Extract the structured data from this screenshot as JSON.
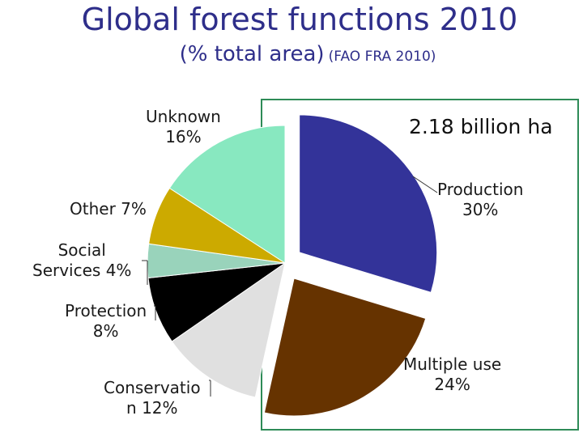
{
  "title": "Global forest functions 2010",
  "subtitle_main": "(% total area)",
  "subtitle_source": "(FAO FRA 2010)",
  "total_label": "2.18 billion ha",
  "chart_data": {
    "type": "pie",
    "title": "Global forest functions 2010",
    "subtitle": "(% total area) (FAO FRA 2010)",
    "slices": [
      {
        "label": "Production",
        "value": 30,
        "color": "#333399",
        "exploded": true,
        "text": [
          "Production",
          "30%"
        ]
      },
      {
        "label": "Multiple use",
        "value": 24,
        "color": "#663300",
        "exploded": true,
        "text": [
          "Multiple use",
          "24%"
        ]
      },
      {
        "label": "Conservation",
        "value": 12,
        "color": "#e0e0e0",
        "exploded": false,
        "text": [
          "Conservatio",
          "n 12%"
        ]
      },
      {
        "label": "Protection",
        "value": 8,
        "color": "#000000",
        "exploded": false,
        "text": [
          "Protection",
          "8%"
        ]
      },
      {
        "label": "Social Services",
        "value": 4,
        "color": "#99d3bb",
        "exploded": false,
        "text": [
          "Social",
          "Services 4%"
        ]
      },
      {
        "label": "Other",
        "value": 7,
        "color": "#ccaa00",
        "exploded": false,
        "text": [
          "Other 7%"
        ]
      },
      {
        "label": "Unknown",
        "value": 16,
        "color": "#88e8c0",
        "exploded": false,
        "text": [
          "Unknown",
          "16%"
        ]
      }
    ]
  }
}
